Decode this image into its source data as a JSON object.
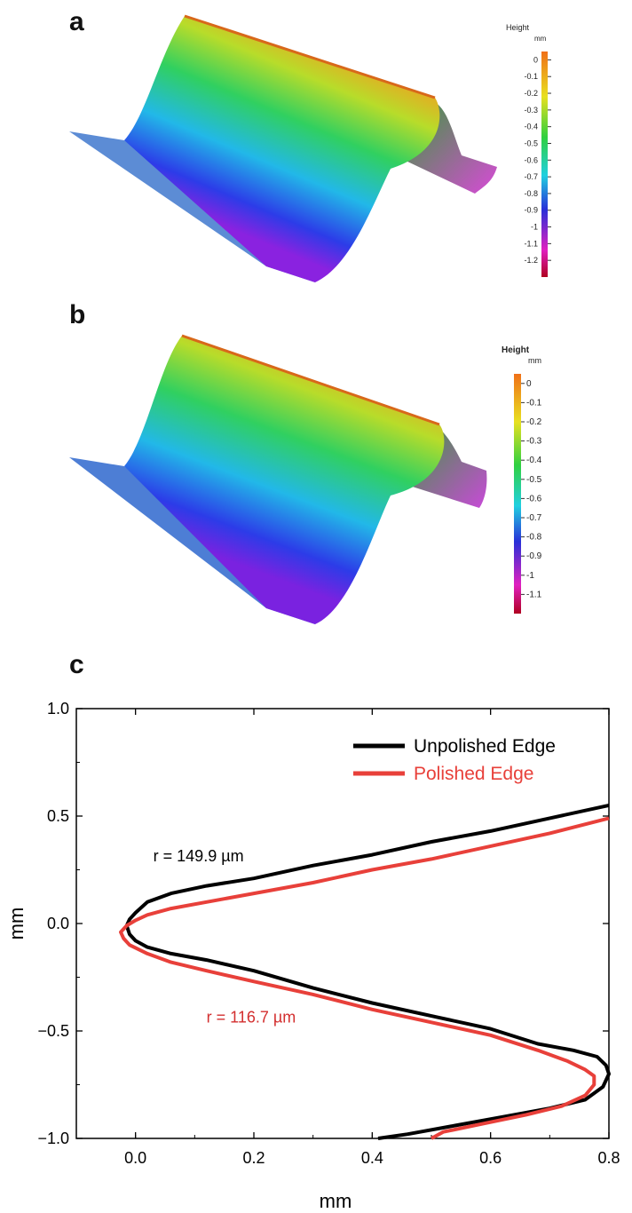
{
  "panels": {
    "a": {
      "label": "a",
      "colorbar": {
        "title": "Height",
        "unit": "mm",
        "ticks": [
          "0",
          "-0.1",
          "-0.2",
          "-0.3",
          "-0.4",
          "-0.5",
          "-0.6",
          "-0.7",
          "-0.8",
          "-0.9",
          "-1",
          "-1.1",
          "-1.2"
        ]
      }
    },
    "b": {
      "label": "b",
      "colorbar": {
        "title": "Height",
        "unit": "mm",
        "ticks": [
          "0",
          "-0.1",
          "-0.2",
          "-0.3",
          "-0.4",
          "-0.5",
          "-0.6",
          "-0.7",
          "-0.8",
          "-0.9",
          "-1",
          "-1.1"
        ]
      }
    },
    "c": {
      "label": "c"
    }
  },
  "colors": {
    "unpolished": "#000000",
    "polished": "#e8403a",
    "polished_annotation": "#d32f2f"
  },
  "chart_data": {
    "type": "line",
    "title": "",
    "xlabel": "mm",
    "ylabel": "mm",
    "xlim": [
      -0.1,
      0.8
    ],
    "ylim": [
      -1.0,
      1.0
    ],
    "xticks": [
      0.0,
      0.2,
      0.4,
      0.6,
      0.8
    ],
    "yticks": [
      -1.0,
      -0.5,
      0.0,
      0.5,
      1.0
    ],
    "xtick_labels": [
      "0.0",
      "0.2",
      "0.4",
      "0.6",
      "0.8"
    ],
    "ytick_labels": [
      "−1.0",
      "−0.5",
      "0.0",
      "0.5",
      "1.0"
    ],
    "legend_position": "top-right",
    "series": [
      {
        "name": "Unpolished Edge",
        "color": "#000000",
        "x": [
          0.8,
          0.7,
          0.6,
          0.5,
          0.4,
          0.3,
          0.2,
          0.12,
          0.06,
          0.02,
          0.0,
          -0.01,
          -0.015,
          -0.01,
          0.0,
          0.02,
          0.06,
          0.12,
          0.2,
          0.3,
          0.4,
          0.5,
          0.6,
          0.68,
          0.74,
          0.78,
          0.795,
          0.8,
          0.79,
          0.76,
          0.7,
          0.62,
          0.54,
          0.46,
          0.41
        ],
        "y": [
          0.55,
          0.49,
          0.43,
          0.38,
          0.32,
          0.27,
          0.21,
          0.175,
          0.14,
          0.1,
          0.05,
          0.02,
          -0.01,
          -0.05,
          -0.08,
          -0.11,
          -0.14,
          -0.17,
          -0.22,
          -0.3,
          -0.37,
          -0.43,
          -0.49,
          -0.56,
          -0.59,
          -0.62,
          -0.66,
          -0.7,
          -0.76,
          -0.82,
          -0.86,
          -0.9,
          -0.94,
          -0.98,
          -1.0
        ]
      },
      {
        "name": "Polished Edge",
        "color": "#e8403a",
        "x": [
          0.8,
          0.7,
          0.6,
          0.5,
          0.4,
          0.3,
          0.2,
          0.12,
          0.06,
          0.02,
          0.0,
          -0.015,
          -0.025,
          -0.02,
          -0.01,
          0.02,
          0.06,
          0.12,
          0.2,
          0.3,
          0.4,
          0.5,
          0.6,
          0.68,
          0.73,
          0.76,
          0.775,
          0.775,
          0.76,
          0.72,
          0.66,
          0.59,
          0.52,
          0.5
        ],
        "y": [
          0.49,
          0.42,
          0.36,
          0.3,
          0.25,
          0.19,
          0.14,
          0.1,
          0.07,
          0.04,
          0.015,
          -0.01,
          -0.04,
          -0.07,
          -0.1,
          -0.14,
          -0.18,
          -0.22,
          -0.27,
          -0.33,
          -0.4,
          -0.46,
          -0.52,
          -0.59,
          -0.64,
          -0.68,
          -0.71,
          -0.75,
          -0.8,
          -0.85,
          -0.89,
          -0.93,
          -0.97,
          -1.0
        ]
      }
    ],
    "annotations": [
      {
        "text": "r = 149.9  µm",
        "x": 0.03,
        "y": 0.29,
        "color": "#000000"
      },
      {
        "text": "r = 116.7 µm",
        "x": 0.12,
        "y": -0.46,
        "color": "#d32f2f"
      }
    ]
  }
}
